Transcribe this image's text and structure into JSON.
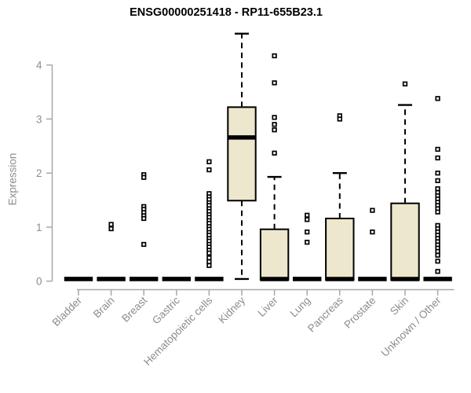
{
  "title": "ENSG00000251418 - RP11-655B23.1",
  "chart_data": {
    "type": "box",
    "title": "ENSG00000251418 - RP11-655B23.1",
    "xlabel": "",
    "ylabel": "Expression",
    "ylim": [
      0,
      4.6
    ],
    "yticks": [
      0,
      1,
      2,
      3,
      4
    ],
    "grid": false,
    "legend": false,
    "categories": [
      "Bladder",
      "Brain",
      "Breast",
      "Gastric",
      "Hematopoietic cells",
      "Kidney",
      "Liver",
      "Lung",
      "Pancreas",
      "Prostate",
      "Skin",
      "Unknown / Other"
    ],
    "boxes": [
      {
        "category": "Bladder",
        "kind": "flat",
        "median": 0,
        "outliers": []
      },
      {
        "category": "Brain",
        "kind": "flat",
        "median": 0,
        "outliers": [
          1.05,
          0.97
        ]
      },
      {
        "category": "Breast",
        "kind": "flat",
        "median": 0,
        "outliers": [
          1.97,
          1.92,
          1.38,
          1.33,
          1.27,
          1.21,
          1.16,
          0.68
        ]
      },
      {
        "category": "Gastric",
        "kind": "flat",
        "median": 0,
        "outliers": []
      },
      {
        "category": "Hematopoietic cells",
        "kind": "flat",
        "median": 0,
        "outliers": [
          2.21,
          2.06,
          1.62,
          1.56,
          1.51,
          1.45,
          1.4,
          1.34,
          1.29,
          1.23,
          1.18,
          1.12,
          1.07,
          1.01,
          0.96,
          0.9,
          0.85,
          0.79,
          0.74,
          0.68,
          0.63,
          0.57,
          0.52,
          0.43,
          0.36,
          0.29
        ]
      },
      {
        "category": "Kidney",
        "kind": "box",
        "q1": 1.49,
        "median": 2.66,
        "q3": 3.22,
        "whisker_low": 0.04,
        "whisker_high": 4.58,
        "outliers": []
      },
      {
        "category": "Liver",
        "kind": "box",
        "q1": 0.02,
        "median": 0.04,
        "q3": 0.96,
        "whisker_low": null,
        "whisker_high": 1.93,
        "outliers": [
          4.17,
          3.67,
          3.03,
          2.9,
          2.8,
          2.37
        ]
      },
      {
        "category": "Lung",
        "kind": "flat",
        "median": 0,
        "outliers": [
          1.22,
          1.14,
          0.91,
          0.72
        ]
      },
      {
        "category": "Pancreas",
        "kind": "box",
        "q1": 0.02,
        "median": 0.04,
        "q3": 1.16,
        "whisker_low": null,
        "whisker_high": 2.0,
        "outliers": [
          3.06,
          3.0
        ]
      },
      {
        "category": "Prostate",
        "kind": "flat",
        "median": 0,
        "outliers": [
          1.31,
          0.91
        ]
      },
      {
        "category": "Skin",
        "kind": "box",
        "q1": 0.02,
        "median": 0.04,
        "q3": 1.44,
        "whisker_low": null,
        "whisker_high": 3.26,
        "outliers": [
          3.65
        ]
      },
      {
        "category": "Unknown / Other",
        "kind": "flat",
        "median": 0,
        "outliers": [
          3.38,
          2.44,
          2.28,
          2.0,
          1.86,
          1.71,
          1.64,
          1.58,
          1.52,
          1.46,
          1.4,
          1.34,
          1.28,
          1.03,
          0.97,
          0.91,
          0.85,
          0.79,
          0.73,
          0.67,
          0.61,
          0.55,
          0.48,
          0.37,
          0.18
        ]
      }
    ],
    "colors": {
      "box_fill": "#ece7cd",
      "box_stroke": "#000000",
      "median": "#000000",
      "outlier": "#000000",
      "axis_line": "#a8a8a8",
      "axis_text": "#8c8c8c",
      "title": "#000000",
      "background": "#ffffff"
    }
  }
}
